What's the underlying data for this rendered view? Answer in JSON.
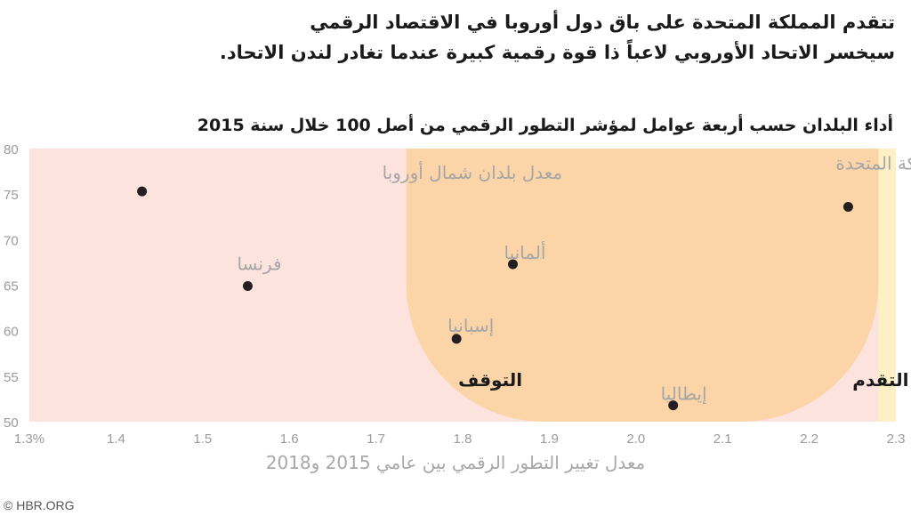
{
  "headline": {
    "line1": "تتقدم المملكة المتحدة على باق دول أوروبا في الاقتصاد الرقمي",
    "line2": "سيخسر الاتحاد الأوروبي لاعباً ذا قوة رقمية كبيرة عندما تغادر لندن الاتحاد."
  },
  "source": "© HBR.ORG",
  "colors": {
    "background_zone": "#fce3dd",
    "stall_zone": "#fbd5a8",
    "progress_zone": "#fdf0c4",
    "point": "#231f20",
    "label_gray": "#a6a6a6",
    "zone_label": "#1a1a1a"
  },
  "chart_data": {
    "type": "scatter",
    "title": "أداء البلدان حسب أربعة عوامل لمؤشر التطور الرقمي من أصل 100 خلال سنة 2015",
    "xlabel": "معدل تغيير التطور الرقمي بين عامي 2015 و2018",
    "ylabel": "",
    "xlim": [
      1.3,
      2.3
    ],
    "ylim": [
      50,
      80
    ],
    "x_ticks": [
      "1.3%",
      "1.4",
      "1.5",
      "1.6",
      "1.7",
      "1.8",
      "1.9",
      "2.0",
      "2.1",
      "2.2",
      "2.3"
    ],
    "y_ticks": [
      "50",
      "55",
      "60",
      "65",
      "70",
      "75",
      "80"
    ],
    "x_tick_values": [
      1.3,
      1.4,
      1.5,
      1.6,
      1.7,
      1.8,
      1.9,
      2.0,
      2.1,
      2.2,
      2.3
    ],
    "y_tick_values": [
      50,
      55,
      60,
      65,
      70,
      75,
      80
    ],
    "points": [
      {
        "label": "معدل بلدان شمال أوروبا",
        "x": 1.43,
        "y": 75.3
      },
      {
        "label": "فرنسا",
        "x": 1.552,
        "y": 64.9
      },
      {
        "label": "ألمانيا",
        "x": 1.858,
        "y": 67.3
      },
      {
        "label": "إسبانيا",
        "x": 1.793,
        "y": 59.1
      },
      {
        "label": "المملكة المتحدة",
        "x": 2.245,
        "y": 73.6
      },
      {
        "label": "إيطاليا",
        "x": 2.043,
        "y": 51.8
      }
    ],
    "zones": [
      {
        "label": "التوقف",
        "x": 1.795,
        "y": 54.6
      },
      {
        "label": "التقدم",
        "x": 2.25,
        "y": 54.6
      }
    ],
    "grid": false
  }
}
